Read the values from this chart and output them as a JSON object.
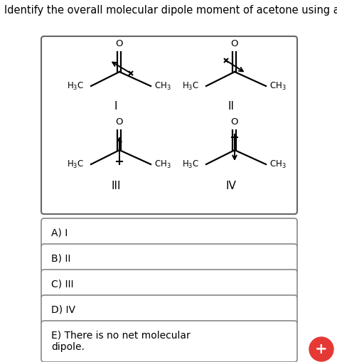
{
  "title": "Identify the overall molecular dipole moment of acetone using a vector arrow.",
  "title_fontsize": 10.5,
  "bg_color": "#ffffff",
  "answer_choices": [
    "A) I",
    "B) II",
    "C) III",
    "D) IV",
    "E) There is no net molecular\ndipole."
  ],
  "fab_color": "#e53935",
  "fab_text": "+"
}
